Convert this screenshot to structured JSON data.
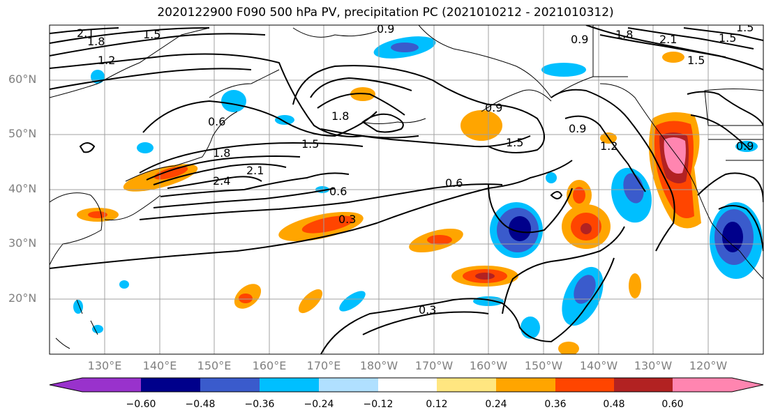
{
  "title": "2020122900 F090 500 hPa PV, precipitation PC (2021010212 - 2021010312)",
  "map": {
    "latitude_labels": [
      "60°N",
      "50°N",
      "40°N",
      "30°N",
      "20°N"
    ],
    "longitude_labels": [
      "130°E",
      "140°E",
      "150°E",
      "160°E",
      "170°E",
      "180°W",
      "170°W",
      "160°W",
      "150°W",
      "140°W",
      "130°W",
      "120°W"
    ],
    "pv_contour_labels": [
      "2.1",
      "1.8",
      "1.5",
      "1.2",
      "0.9",
      "0.6",
      "1.8",
      "2.4",
      "2.1",
      "1.5",
      "1.8",
      "0.6",
      "0.3",
      "0.6",
      "0.9",
      "1.5",
      "0.9",
      "1.2",
      "0.3",
      "0.9",
      "1.8",
      "2.1",
      "1.5",
      "1.5",
      "1.5",
      "0.9"
    ],
    "colors": {
      "coastline": "#000000",
      "gridline": "#a0a0a0",
      "contour": "#000000",
      "axis_label": "#808080"
    }
  },
  "colorbar": {
    "tick_labels": [
      "−0.60",
      "−0.48",
      "−0.36",
      "−0.24",
      "−0.12",
      "0.12",
      "0.24",
      "0.36",
      "0.48",
      "0.60"
    ],
    "colors": [
      "#9932cc",
      "#00008b",
      "#3a5bcc",
      "#00bfff",
      "#b0e0ff",
      "#ffffff",
      "#ffe680",
      "#ffa500",
      "#ff4500",
      "#b22222",
      "#ff85b0"
    ]
  }
}
